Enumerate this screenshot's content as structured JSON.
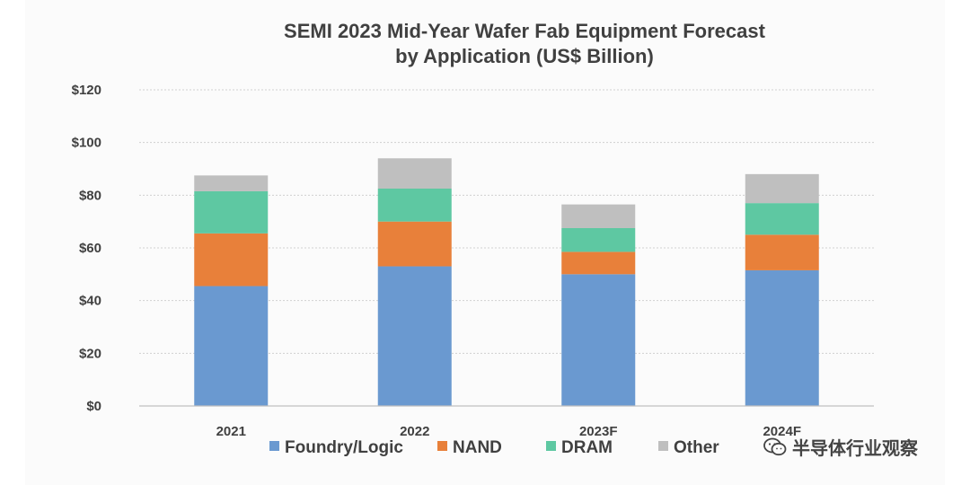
{
  "chart_data": {
    "type": "bar",
    "stacked": true,
    "title": [
      "SEMI 2023 Mid-Year Wafer Fab Equipment Forecast",
      "by Application (US$ Billion)"
    ],
    "categories": [
      "2021",
      "2022",
      "2023F",
      "2024F"
    ],
    "series": [
      {
        "name": "Foundry/Logic",
        "color": "#6a99d0",
        "values": [
          45.5,
          53.0,
          50.0,
          51.5
        ]
      },
      {
        "name": "NAND",
        "color": "#e8803a",
        "values": [
          20.0,
          17.0,
          8.5,
          13.5
        ]
      },
      {
        "name": "DRAM",
        "color": "#5ec8a2",
        "values": [
          16.0,
          12.5,
          9.0,
          12.0
        ]
      },
      {
        "name": "Other",
        "color": "#bfbfbf",
        "values": [
          6.0,
          11.5,
          9.0,
          11.0
        ]
      }
    ],
    "ylim": [
      0,
      120
    ],
    "yticks": [
      0,
      20,
      40,
      60,
      80,
      100,
      120
    ],
    "ytick_labels": [
      "$0",
      "$20",
      "$40",
      "$60",
      "$80",
      "$100",
      "$120"
    ],
    "grid": true,
    "legend": "bottom"
  },
  "watermark": {
    "text": "半导体行业观察",
    "icon": "wechat-icon"
  }
}
